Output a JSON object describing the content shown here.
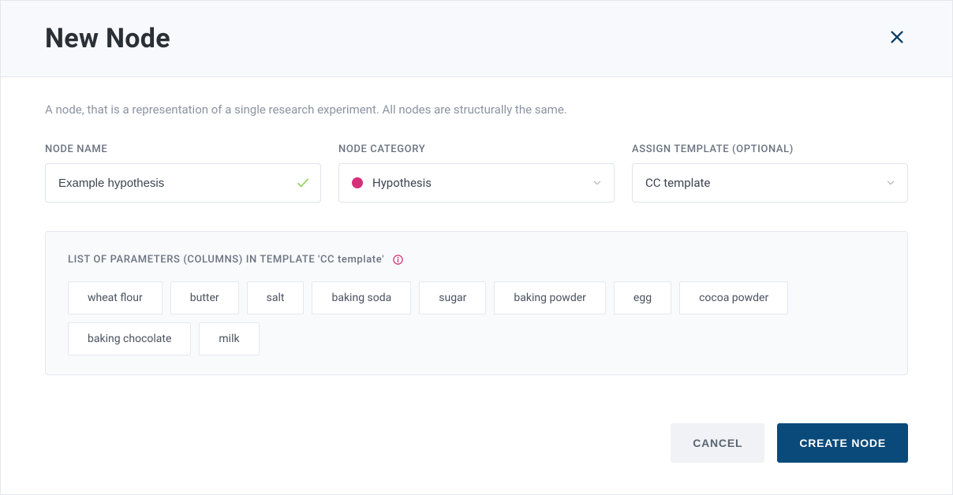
{
  "header": {
    "title": "New Node"
  },
  "description": "A node, that is a representation of a single research experiment. All nodes are structurally the same.",
  "fields": {
    "node_name": {
      "label": "NODE NAME",
      "value": "Example hypothesis"
    },
    "node_category": {
      "label": "NODE CATEGORY",
      "value": "Hypothesis",
      "dot_color": "#d6307b"
    },
    "assign_template": {
      "label": "ASSIGN TEMPLATE (OPTIONAL)",
      "value": "CC template"
    }
  },
  "params": {
    "title": "LIST OF PARAMETERS (COLUMNS) IN TEMPLATE 'CC template'",
    "items": [
      "wheat flour",
      "butter",
      "salt",
      "baking soda",
      "sugar",
      "baking powder",
      "egg",
      "cocoa powder",
      "baking chocolate",
      "milk"
    ]
  },
  "buttons": {
    "cancel": "CANCEL",
    "create": "CREATE NODE"
  },
  "colors": {
    "primary_button_bg": "#0a4a7a",
    "close_icon": "#0a3d62",
    "category_dot": "#d6307b",
    "check_icon": "#9ed26a",
    "info_icon": "#d6307b"
  }
}
